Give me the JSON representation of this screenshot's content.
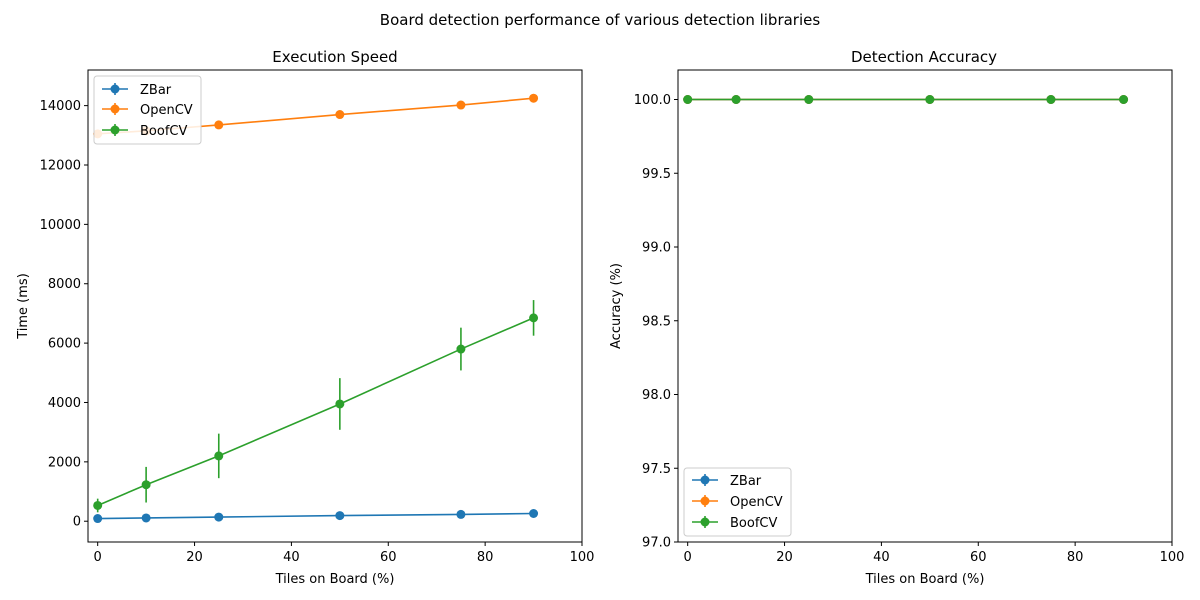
{
  "figure": {
    "suptitle": "Board detection performance of various detection libraries"
  },
  "chart_data": [
    {
      "type": "line",
      "title": "Execution Speed",
      "xlabel": "Tiles on Board (%)",
      "ylabel": "Time (ms)",
      "xlim": [
        -2,
        100
      ],
      "ylim": [
        -700,
        15200
      ],
      "xticks": [
        0,
        20,
        40,
        60,
        80,
        100
      ],
      "yticks": [
        0,
        2000,
        4000,
        6000,
        8000,
        10000,
        12000,
        14000
      ],
      "ytick_labels": [
        "0",
        "2000",
        "4000",
        "6000",
        "8000",
        "10000",
        "12000",
        "14000"
      ],
      "grid": false,
      "legend_position": "top-left",
      "x": [
        0,
        10,
        25,
        50,
        75,
        90
      ],
      "series": [
        {
          "name": "ZBar",
          "color": "#1f77b4",
          "values": [
            90,
            110,
            140,
            190,
            230,
            260
          ],
          "errors": [
            10,
            10,
            15,
            20,
            25,
            25
          ]
        },
        {
          "name": "OpenCV",
          "color": "#ff7f0e",
          "values": [
            13050,
            13150,
            13350,
            13700,
            14020,
            14250
          ],
          "errors": [
            30,
            30,
            30,
            40,
            40,
            40
          ]
        },
        {
          "name": "BoofCV",
          "color": "#2ca02c",
          "values": [
            530,
            1230,
            2200,
            3950,
            5800,
            6850
          ],
          "errors": [
            230,
            600,
            750,
            870,
            720,
            600
          ]
        }
      ]
    },
    {
      "type": "line",
      "title": "Detection Accuracy",
      "xlabel": "Tiles on Board (%)",
      "ylabel": "Accuracy (%)",
      "xlim": [
        -2,
        100
      ],
      "ylim": [
        97.0,
        100.2
      ],
      "xticks": [
        0,
        20,
        40,
        60,
        80,
        100
      ],
      "yticks": [
        97.0,
        97.5,
        98.0,
        98.5,
        99.0,
        99.5,
        100.0
      ],
      "ytick_labels": [
        "97.0",
        "97.5",
        "98.0",
        "98.5",
        "99.0",
        "99.5",
        "100.0"
      ],
      "grid": false,
      "legend_position": "bottom-left",
      "x": [
        0,
        10,
        25,
        50,
        75,
        90
      ],
      "series": [
        {
          "name": "ZBar",
          "color": "#1f77b4",
          "values": [
            100,
            100,
            100,
            100,
            100,
            100
          ],
          "errors": [
            0,
            0,
            0,
            0,
            0,
            0
          ]
        },
        {
          "name": "OpenCV",
          "color": "#ff7f0e",
          "values": [
            100,
            100,
            100,
            100,
            100,
            100
          ],
          "errors": [
            0,
            0,
            0,
            0,
            0,
            0
          ]
        },
        {
          "name": "BoofCV",
          "color": "#2ca02c",
          "values": [
            100,
            100,
            100,
            100,
            100,
            100
          ],
          "errors": [
            0,
            0,
            0,
            0,
            0,
            0
          ]
        }
      ]
    }
  ]
}
